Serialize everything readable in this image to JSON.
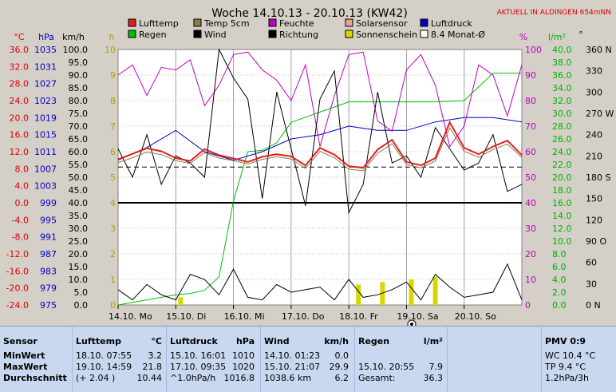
{
  "title": "Woche 14.10.13 - 20.10.13 (KW42)",
  "subtitle": "AKTUELL IN ALDINGEN 654mNN",
  "legend": [
    {
      "label": "Lufttemp",
      "color": "#e02020"
    },
    {
      "label": "Temp 5cm",
      "color": "#8b7d50"
    },
    {
      "label": "Feuchte",
      "color": "#c000c0"
    },
    {
      "label": "Solarsensor",
      "color": "#f0a090"
    },
    {
      "label": "Luftdruck",
      "color": "#0000c0"
    },
    {
      "label": "Regen",
      "color": "#00c000"
    },
    {
      "label": "Wind",
      "color": "#000000"
    },
    {
      "label": "Richtung",
      "color": "#000000"
    },
    {
      "label": "Sonnenschein",
      "color": "#d8d800"
    },
    {
      "label": "8.4 Monat-Ø",
      "color": "#ffffff"
    }
  ],
  "axes": {
    "temp": {
      "unit": "°C",
      "ticks": [
        "36.0",
        "32.0",
        "28.0",
        "24.0",
        "20.0",
        "16.0",
        "12.0",
        "8.0",
        "4.0",
        "0.0",
        "-4.0",
        "-8.0",
        "-12.0",
        "-16.0",
        "-20.0",
        "-24.0"
      ]
    },
    "pressure": {
      "unit": "hPa",
      "ticks": [
        "1035",
        "1031",
        "1027",
        "1023",
        "1019",
        "1015",
        "1011",
        "1007",
        "1003",
        "999",
        "995",
        "991",
        "987",
        "983",
        "979",
        "975"
      ]
    },
    "wind": {
      "unit": "km/h",
      "ticks": [
        "100.0",
        "95.0",
        "90.0",
        "85.0",
        "80.0",
        "75.0",
        "70.0",
        "65.0",
        "60.0",
        "55.0",
        "50.0",
        "45.0",
        "40.0",
        "35.0",
        "30.0",
        "25.0",
        "20.0",
        "15.0",
        "10.0",
        "5.0",
        "0.0"
      ]
    },
    "hours": {
      "unit": "h",
      "ticks": [
        "10",
        "9",
        "8",
        "7",
        "6",
        "5",
        "4",
        "3",
        "2",
        "1",
        "0"
      ]
    },
    "humidity": {
      "unit": "%",
      "ticks": [
        "100",
        "90",
        "80",
        "70",
        "60",
        "50",
        "40",
        "30",
        "20",
        "10",
        "0"
      ]
    },
    "rain": {
      "unit": "l/m²",
      "ticks": [
        "40.0",
        "38.0",
        "36.0",
        "34.0",
        "32.0",
        "30.0",
        "28.0",
        "26.0",
        "24.0",
        "22.0",
        "20.0",
        "18.0",
        "16.0",
        "14.0",
        "12.0",
        "10.0",
        "8.0",
        "6.0",
        "4.0",
        "2.0",
        "0.0"
      ]
    },
    "direction": {
      "unit": "°",
      "ticks": [
        "360 N",
        "330",
        "300",
        "270 W",
        "240",
        "210",
        "180 S",
        "150",
        "120",
        "90 O",
        "60",
        "30",
        "0 N"
      ]
    }
  },
  "days": [
    "14.10. Mo",
    "15.10. Di",
    "16.10. Mi",
    "17.10. Do",
    "18.10. Fr",
    "19.10. Sa",
    "20.10. So"
  ],
  "chart_data": {
    "type": "line",
    "x_unit": "hours since 14.10. 00:00",
    "temp_ylim": [
      -24,
      36
    ],
    "series": [
      {
        "name": "Lufttemp",
        "unit": "°C",
        "x": [
          0,
          6,
          12,
          18,
          24,
          30,
          36,
          42,
          48,
          54,
          60,
          66,
          72,
          78,
          84,
          90,
          96,
          102,
          108,
          114,
          120,
          126,
          132,
          138,
          144,
          150,
          156,
          162,
          168
        ],
        "y": [
          10.2,
          11.5,
          12.8,
          12.1,
          10.5,
          9.8,
          12.6,
          11.2,
          10.4,
          9.6,
          10.8,
          11.4,
          10.9,
          8.8,
          12.9,
          11.3,
          8.6,
          8.2,
          12.5,
          14.8,
          9.6,
          8.8,
          10.5,
          18.9,
          12.9,
          11.4,
          13.2,
          14.6,
          11.2
        ]
      },
      {
        "name": "Temp 5cm",
        "unit": "°C",
        "x": [
          0,
          6,
          12,
          18,
          24,
          30,
          36,
          42,
          48,
          54,
          60,
          66,
          72,
          78,
          84,
          90,
          96,
          102,
          108,
          114,
          120,
          126,
          132,
          138,
          144,
          150,
          156,
          162,
          168
        ],
        "y": [
          9.4,
          10.6,
          11.9,
          11.3,
          9.9,
          9.2,
          11.8,
          10.5,
          9.9,
          9.1,
          10.2,
          10.8,
          10.3,
          8.1,
          12.1,
          10.6,
          7.9,
          7.5,
          11.6,
          13.9,
          9.0,
          8.2,
          9.8,
          17.6,
          12.1,
          10.7,
          12.5,
          13.8,
          10.6
        ]
      },
      {
        "name": "Luftdruck",
        "unit": "hPa",
        "x": [
          0,
          12,
          24,
          36,
          48,
          60,
          72,
          84,
          96,
          108,
          120,
          132,
          144,
          156,
          168
        ],
        "y": [
          1009,
          1012,
          1016,
          1011,
          1009,
          1011,
          1014,
          1015,
          1017,
          1016,
          1016,
          1018,
          1019,
          1019,
          1018
        ]
      },
      {
        "name": "Feuchte",
        "unit": "%",
        "x": [
          0,
          6,
          12,
          18,
          24,
          30,
          36,
          42,
          48,
          54,
          60,
          66,
          72,
          78,
          84,
          90,
          96,
          102,
          108,
          114,
          120,
          126,
          132,
          138,
          144,
          150,
          156,
          162,
          168
        ],
        "y": [
          90,
          94,
          82,
          93,
          92,
          96,
          78,
          86,
          98,
          99,
          92,
          88,
          80,
          94,
          62,
          82,
          98,
          99,
          72,
          68,
          92,
          98,
          86,
          62,
          70,
          94,
          90,
          74,
          94
        ]
      },
      {
        "name": "Regen",
        "unit": "l/m²",
        "x": [
          0,
          24,
          30,
          36,
          42,
          48,
          54,
          60,
          66,
          72,
          84,
          96,
          108,
          120,
          132,
          144,
          156,
          168
        ],
        "y": [
          0,
          1.6,
          1.8,
          2.3,
          4.4,
          16.3,
          24.0,
          24.2,
          25.4,
          28.6,
          30.2,
          31.8,
          31.8,
          31.8,
          31.8,
          32.0,
          36.3,
          36.3
        ]
      },
      {
        "name": "Wind",
        "unit": "km/h",
        "x": [
          0,
          6,
          12,
          18,
          24,
          30,
          36,
          42,
          48,
          54,
          60,
          66,
          72,
          78,
          84,
          90,
          96,
          102,
          108,
          114,
          120,
          126,
          132,
          138,
          144,
          150,
          156,
          162,
          168
        ],
        "y": [
          6,
          2,
          8,
          4,
          2,
          12,
          10,
          4,
          14,
          3,
          2,
          8,
          5,
          6,
          7,
          2,
          10,
          3,
          4,
          6,
          9,
          2,
          12,
          7,
          3,
          4,
          5,
          16,
          2
        ]
      },
      {
        "name": "Richtung",
        "unit": "°",
        "x": [
          0,
          6,
          12,
          18,
          24,
          30,
          36,
          42,
          48,
          54,
          60,
          66,
          72,
          78,
          84,
          90,
          96,
          102,
          108,
          114,
          120,
          126,
          132,
          138,
          144,
          150,
          156,
          162,
          168
        ],
        "y": [
          220,
          180,
          240,
          170,
          210,
          200,
          180,
          360,
          320,
          290,
          150,
          300,
          220,
          140,
          290,
          330,
          130,
          170,
          300,
          200,
          210,
          180,
          250,
          220,
          190,
          200,
          240,
          160,
          170
        ]
      }
    ],
    "sunshine_bars": {
      "unit": "h",
      "x": [
        26,
        100,
        110,
        122,
        132
      ],
      "values": [
        0.3,
        0.8,
        0.9,
        1.0,
        1.1
      ]
    },
    "month_avg": {
      "unit": "°C",
      "value": 8.4
    }
  },
  "table": {
    "sensor": {
      "header": "Sensor",
      "rows": [
        "MinWert",
        "MaxWert",
        "Durchschnitt"
      ]
    },
    "luft": {
      "header": "Lufttemp",
      "unit": "°C",
      "rows": [
        [
          "18.10.  07:55",
          "3.2"
        ],
        [
          "19.10.  14:59",
          "21.8"
        ],
        [
          "(+ 2.04 )",
          "10.44"
        ]
      ]
    },
    "druck": {
      "header": "Luftdruck",
      "unit": "hPa",
      "rows": [
        [
          "15.10.  16:01",
          "1010"
        ],
        [
          "17.10.  09:35",
          "1020"
        ],
        [
          "^1.0hPa/h",
          "1016.8"
        ]
      ]
    },
    "wind": {
      "header": "Wind",
      "unit": "km/h",
      "rows": [
        [
          "14.10.  01:23",
          "0.0"
        ],
        [
          "15.10.  21:07",
          "29.9"
        ],
        [
          "1038.6 km",
          "6.2"
        ]
      ]
    },
    "regen": {
      "header": "Regen",
      "unit": "l/m²",
      "rows": [
        [
          "",
          ""
        ],
        [
          "15.10.  20:55",
          "7.9"
        ],
        [
          "Gesamt:",
          "36.3"
        ]
      ]
    },
    "pmv": {
      "header": "PMV 0:9",
      "rows": [
        "WC 10.4 °C",
        "TP 9.4 °C",
        "1.2hPa/3h"
      ]
    }
  }
}
